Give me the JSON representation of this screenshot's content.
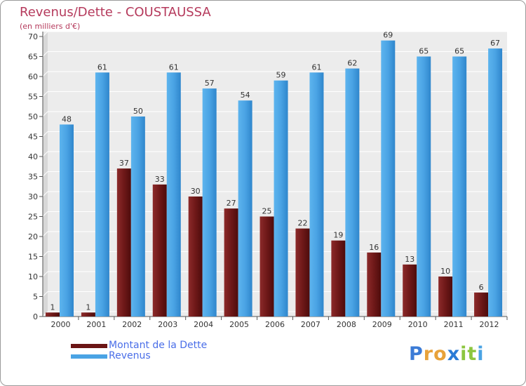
{
  "header": {
    "title": "Revenus/Dette - COUSTAUSSA",
    "subtitle": "(en milliers d'€)"
  },
  "chart_data": {
    "type": "bar",
    "title": "Revenus/Dette - COUSTAUSSA",
    "ylabel": "(en milliers d'€)",
    "categories": [
      "2000",
      "2001",
      "2002",
      "2003",
      "2004",
      "2005",
      "2006",
      "2007",
      "2008",
      "2009",
      "2010",
      "2011",
      "2012"
    ],
    "series": [
      {
        "name": "Montant de la Dette",
        "color": "#6b1515",
        "values": [
          1,
          1,
          37,
          33,
          30,
          27,
          25,
          22,
          19,
          16,
          13,
          10,
          6
        ]
      },
      {
        "name": "Revenus",
        "color": "#4aa3e4",
        "values": [
          48,
          61,
          50,
          61,
          57,
          54,
          59,
          61,
          62,
          69,
          65,
          65,
          67
        ]
      }
    ],
    "ylim": [
      0,
      70
    ],
    "yticks": [
      0,
      5,
      10,
      15,
      20,
      25,
      30,
      35,
      40,
      45,
      50,
      55,
      60,
      65,
      70
    ],
    "grid": true,
    "legend": "bottom-left"
  },
  "legend": {
    "items": [
      {
        "label": "Montant de la Dette",
        "color": "#6b1515"
      },
      {
        "label": "Revenus",
        "color": "#4aa3e4"
      }
    ]
  },
  "logo": {
    "letters": [
      "P",
      "r",
      "o",
      "x",
      "i",
      "t",
      "i"
    ],
    "colors": [
      "#3b7bd6",
      "#e8a23a",
      "#e8a23a",
      "#2b7bd6",
      "#8cc63f",
      "#8cc63f",
      "#4aa3e4"
    ]
  }
}
